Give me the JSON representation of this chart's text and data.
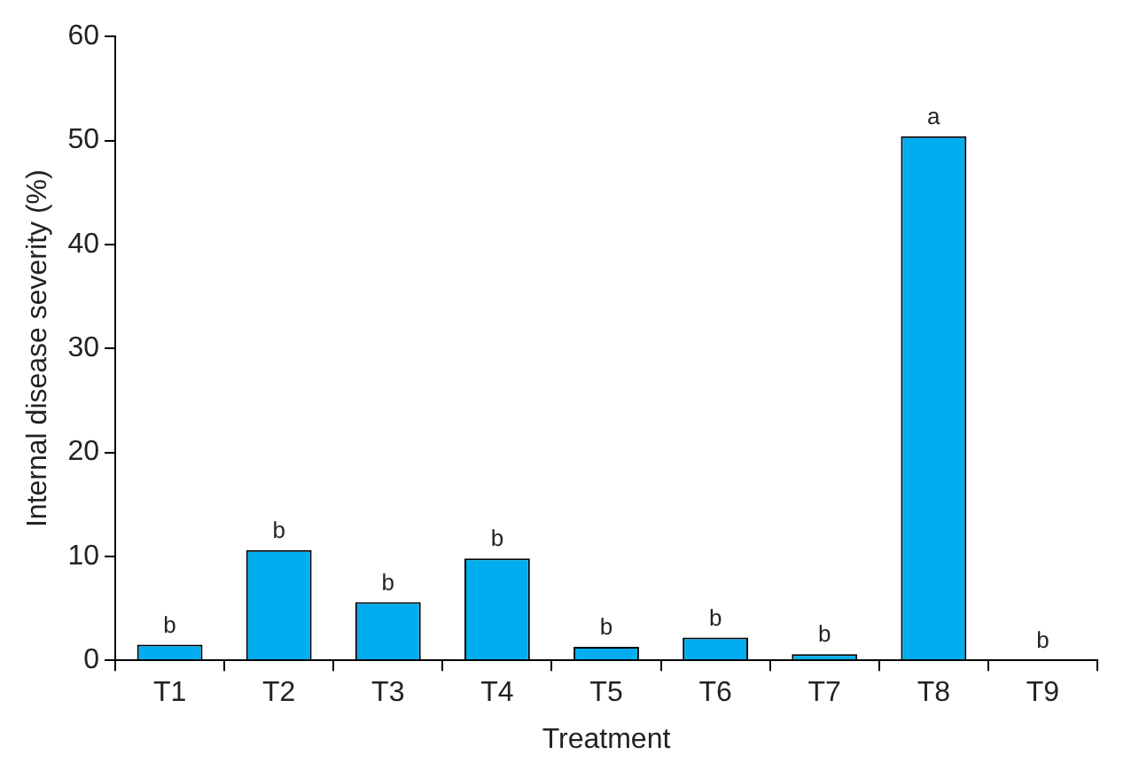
{
  "chart_data": {
    "type": "bar",
    "xlabel": "Treatment",
    "ylabel": "Internal disease severity (%)",
    "categories": [
      "T1",
      "T2",
      "T3",
      "T4",
      "T5",
      "T6",
      "T7",
      "T8",
      "T9"
    ],
    "values": [
      1.5,
      10.6,
      5.6,
      9.8,
      1.3,
      2.2,
      0.6,
      50.4,
      0
    ],
    "color": "#00aeef",
    "ylim": [
      0,
      60
    ],
    "yticks": [
      0,
      10,
      20,
      30,
      40,
      50,
      60
    ],
    "grid": false,
    "legend": false,
    "annotations": [
      {
        "text": "b",
        "x": "T1",
        "y": 1.5
      },
      {
        "text": "b",
        "x": "T2",
        "y": 10.6
      },
      {
        "text": "b",
        "x": "T3",
        "y": 5.6
      },
      {
        "text": "b",
        "x": "T4",
        "y": 9.8
      },
      {
        "text": "b",
        "x": "T5",
        "y": 1.3
      },
      {
        "text": "b",
        "x": "T6",
        "y": 2.2
      },
      {
        "text": "b",
        "x": "T7",
        "y": 0.6
      },
      {
        "text": "a",
        "x": "T8",
        "y": 50.4
      },
      {
        "text": "b",
        "x": "T9",
        "y": 0
      }
    ]
  }
}
